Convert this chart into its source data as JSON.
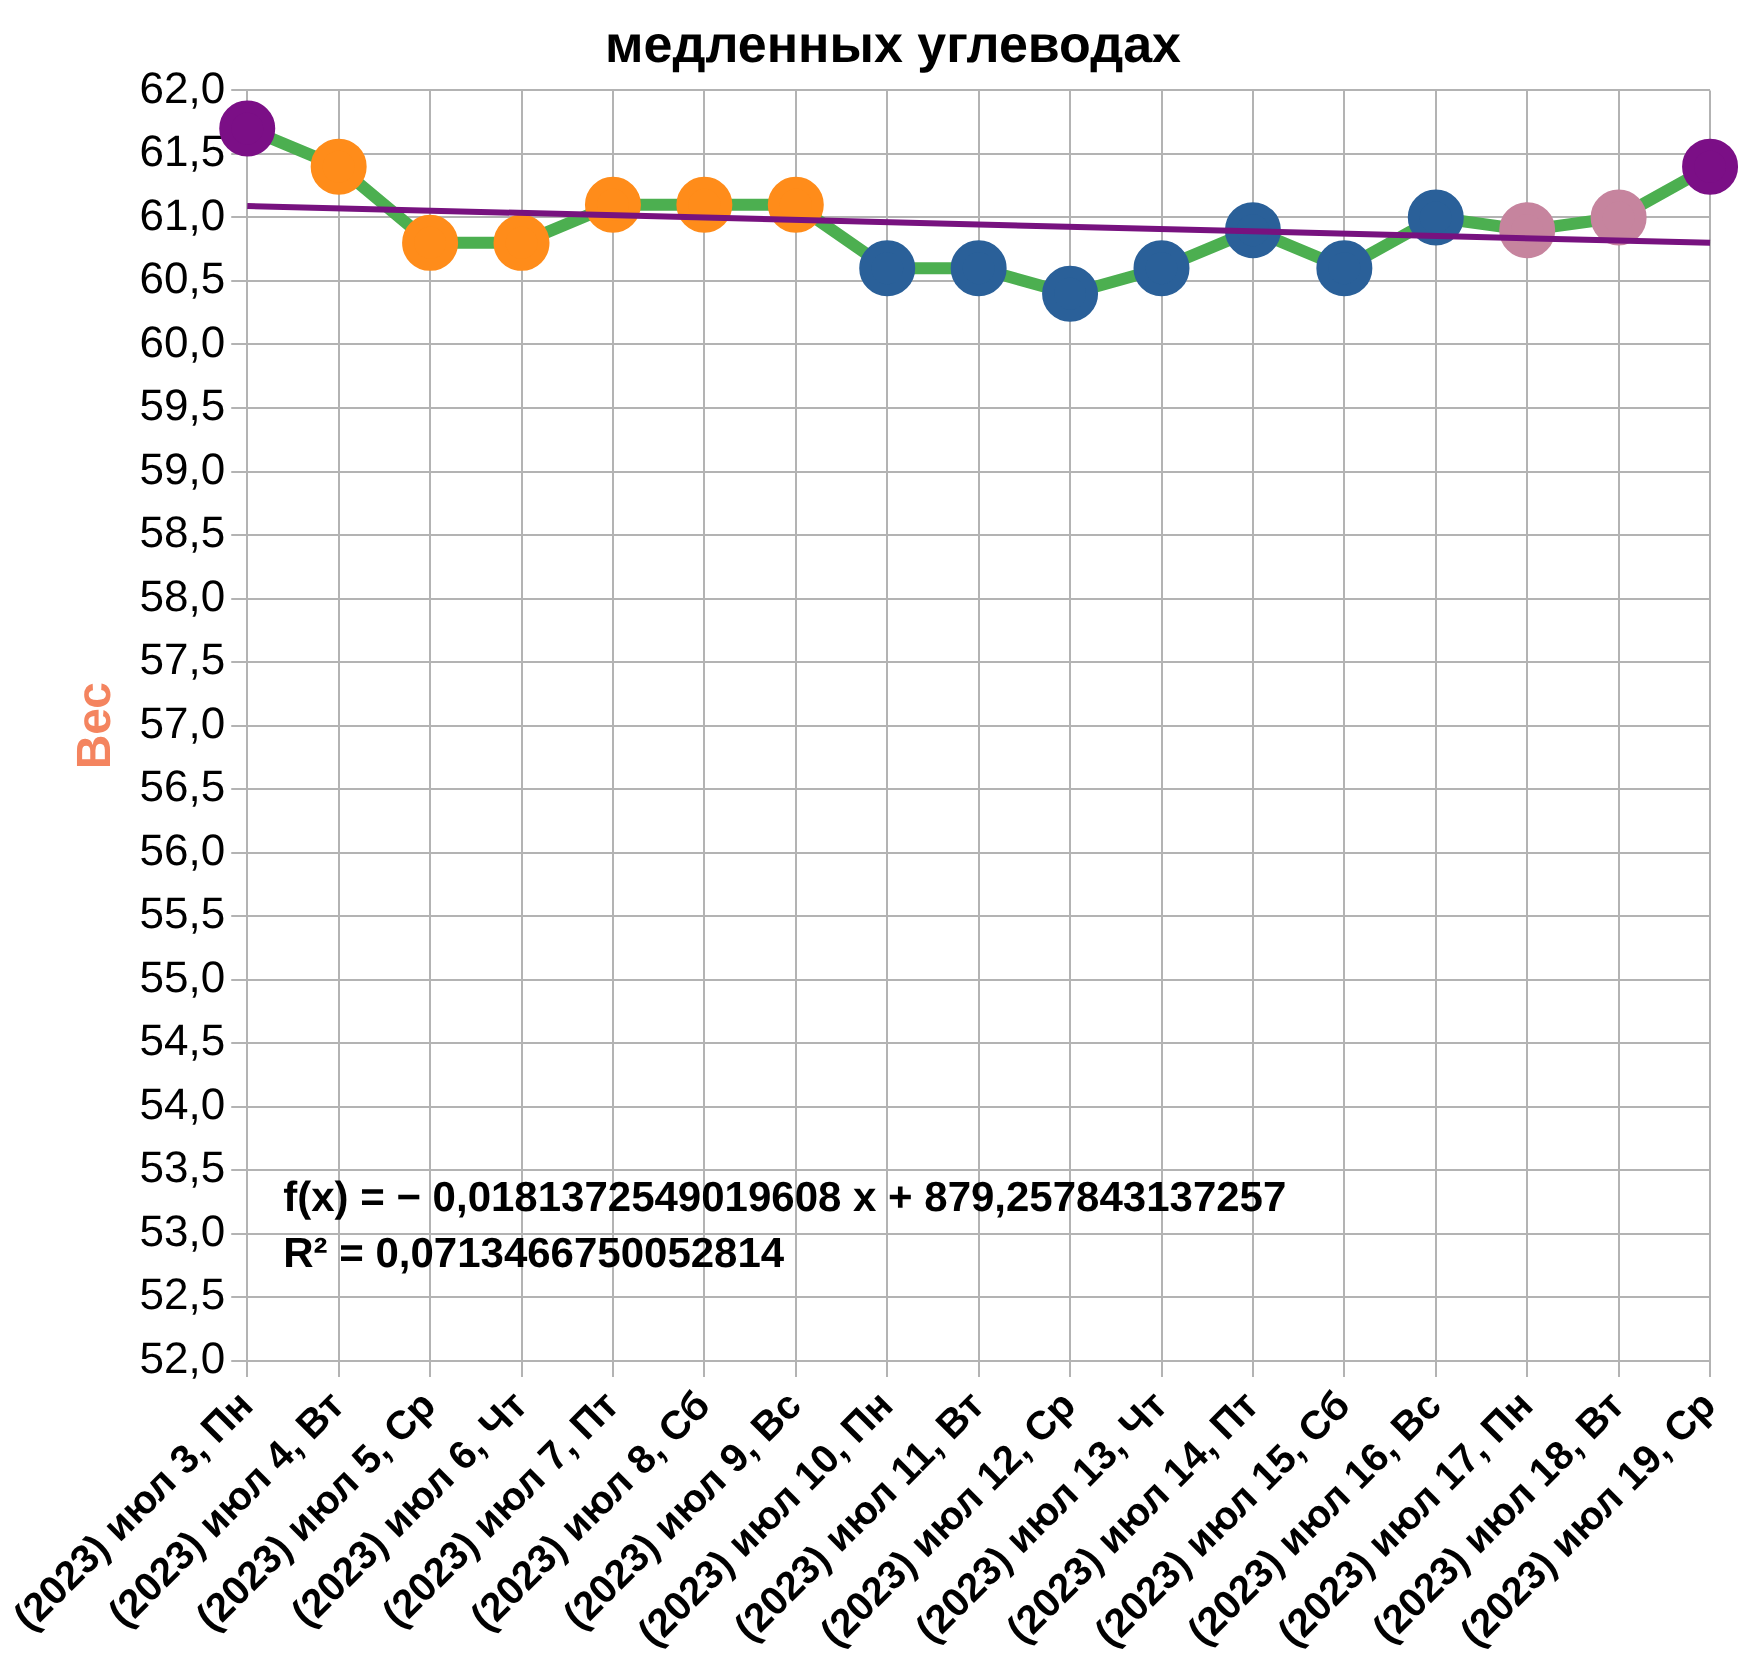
{
  "chart_data": {
    "type": "line",
    "title": "медленных углеводах",
    "ylabel": "Вес",
    "categories": [
      "(2023) июл 3, Пн",
      "(2023) июл 4, Вт",
      "(2023) июл 5, Ср",
      "(2023) июл 6, Чт",
      "(2023) июл 7, Пт",
      "(2023) июл 8, Сб",
      "(2023) июл 9, Вс",
      "(2023) июл 10, Пн",
      "(2023) июл 11, Вт",
      "(2023) июл 12, Ср",
      "(2023) июл 13, Чт",
      "(2023) июл 14, Пт",
      "(2023) июл 15, Сб",
      "(2023) июл 16, Вс",
      "(2023) июл 17, Пн",
      "(2023) июл 18, Вт",
      "(2023) июл 19, Ср"
    ],
    "series": [
      {
        "color": "#4caf50",
        "colors": [
          "#7b0f86",
          "#ff8c1a",
          "#ff8c1a",
          "#ff8c1a",
          "#ff8c1a",
          "#ff8c1a",
          "#ff8c1a",
          "#2a6099",
          "#2a6099",
          "#2a6099",
          "#2a6099",
          "#2a6099",
          "#2a6099",
          "#2a6099",
          "#c6849e",
          "#c6849e",
          "#7b0f86"
        ],
        "values": [
          61.7,
          61.4,
          60.8,
          60.8,
          61.1,
          61.1,
          61.1,
          60.6,
          60.6,
          60.4,
          60.6,
          60.9,
          60.6,
          61.0,
          60.9,
          61.0,
          61.4
        ]
      },
      {
        "type": "line",
        "color": "#77127f",
        "marker": "none",
        "x": [
          "(2023) июл 3, Пн",
          "(2023) июл 19, Ср"
        ],
        "values": [
          61.09,
          60.8
        ]
      }
    ],
    "ylim": [
      52,
      62
    ],
    "yticks": [
      {
        "value": 52,
        "label": "52,0"
      },
      {
        "value": 52.5,
        "label": "52,5"
      },
      {
        "value": 53,
        "label": "53,0"
      },
      {
        "value": 53.5,
        "label": "53,5"
      },
      {
        "value": 54,
        "label": "54,0"
      },
      {
        "value": 54.5,
        "label": "54,5"
      },
      {
        "value": 55,
        "label": "55,0"
      },
      {
        "value": 55.5,
        "label": "55,5"
      },
      {
        "value": 56,
        "label": "56,0"
      },
      {
        "value": 56.5,
        "label": "56,5"
      },
      {
        "value": 57,
        "label": "57,0"
      },
      {
        "value": 57.5,
        "label": "57,5"
      },
      {
        "value": 58,
        "label": "58,0"
      },
      {
        "value": 58.5,
        "label": "58,5"
      },
      {
        "value": 59,
        "label": "59,0"
      },
      {
        "value": 59.5,
        "label": "59,5"
      },
      {
        "value": 60,
        "label": "60,0"
      },
      {
        "value": 60.5,
        "label": "60,5"
      },
      {
        "value": 61,
        "label": "61,0"
      },
      {
        "value": 61.5,
        "label": "61,5"
      },
      {
        "value": 62,
        "label": "62,0"
      }
    ],
    "grid": true,
    "legend": false,
    "marker": "circle",
    "annotations": [
      "f(x) = − 0,0181372549019608 x + 879,257843137257",
      "R² = 0,0713466750052814"
    ]
  }
}
